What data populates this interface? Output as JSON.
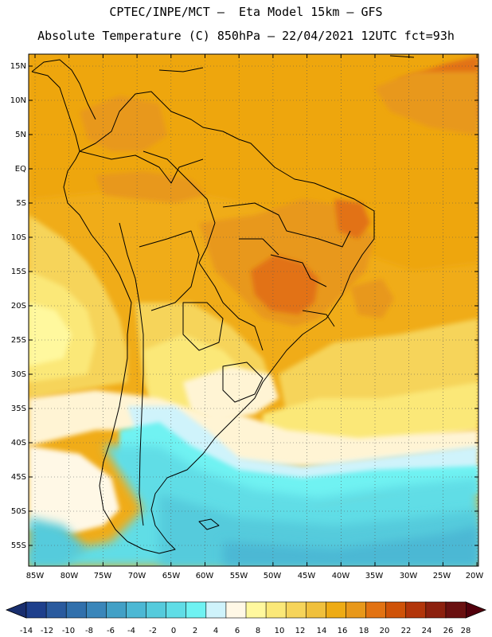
{
  "header": {
    "line1": "CPTEC/INPE/MCT –  Eta Model 15km – GFS",
    "line2": "Absolute Temperature (C) 850hPa – 22/04/2021 12UTC fct=93h"
  },
  "axes": {
    "lat_labels": [
      "15N",
      "10N",
      "5N",
      "EQ",
      "5S",
      "10S",
      "15S",
      "20S",
      "25S",
      "30S",
      "35S",
      "40S",
      "45S",
      "50S",
      "55S"
    ],
    "lon_labels": [
      "85W",
      "80W",
      "75W",
      "70W",
      "65W",
      "60W",
      "55W",
      "50W",
      "45W",
      "40W",
      "35W",
      "30W",
      "25W",
      "20W"
    ]
  },
  "colorbar": {
    "labels": [
      "-14",
      "-12",
      "-10",
      "-8",
      "-6",
      "-4",
      "-2",
      "0",
      "2",
      "4",
      "6",
      "8",
      "10",
      "12",
      "14",
      "16",
      "18",
      "20",
      "22",
      "24",
      "26",
      "28"
    ],
    "colors": [
      "#1e3f8c",
      "#2a5a9e",
      "#3170ac",
      "#3a86ba",
      "#42a0c6",
      "#4cb8d4",
      "#55cbdc",
      "#60dde6",
      "#6ff2f2",
      "#cff3fb",
      "#fff8e6",
      "#fff89e",
      "#fbe878",
      "#f6d45a",
      "#f0c03c",
      "#eeab14",
      "#e8981a",
      "#e27212",
      "#cf5208",
      "#b2350a",
      "#8c200e",
      "#6a1010"
    ],
    "left_arrow_color": "#192e6e",
    "right_arrow_color": "#52000c"
  }
}
